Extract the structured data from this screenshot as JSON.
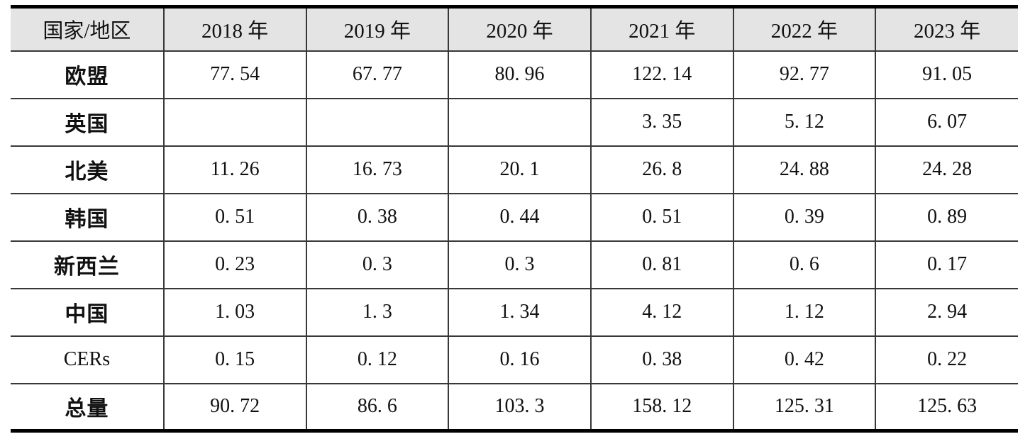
{
  "table": {
    "columns": [
      "国家/地区",
      "2018 年",
      "2019 年",
      "2020 年",
      "2021 年",
      "2022 年",
      "2023 年"
    ],
    "rows": [
      {
        "label": "欧盟",
        "latin": false,
        "values": [
          "77. 54",
          "67. 77",
          "80. 96",
          "122. 14",
          "92. 77",
          "91. 05"
        ]
      },
      {
        "label": "英国",
        "latin": false,
        "values": [
          "",
          "",
          "",
          "3. 35",
          "5. 12",
          "6. 07"
        ]
      },
      {
        "label": "北美",
        "latin": false,
        "values": [
          "11. 26",
          "16. 73",
          "20. 1",
          "26. 8",
          "24. 88",
          "24. 28"
        ]
      },
      {
        "label": "韩国",
        "latin": false,
        "values": [
          "0. 51",
          "0. 38",
          "0. 44",
          "0. 51",
          "0. 39",
          "0. 89"
        ]
      },
      {
        "label": "新西兰",
        "latin": false,
        "values": [
          "0. 23",
          "0. 3",
          "0. 3",
          "0. 81",
          "0. 6",
          "0. 17"
        ]
      },
      {
        "label": "中国",
        "latin": false,
        "values": [
          "1. 03",
          "1. 3",
          "1. 34",
          "4. 12",
          "1. 12",
          "2. 94"
        ]
      },
      {
        "label": "CERs",
        "latin": true,
        "values": [
          "0. 15",
          "0. 12",
          "0. 16",
          "0. 38",
          "0. 42",
          "0. 22"
        ]
      },
      {
        "label": "总量",
        "latin": false,
        "values": [
          "90. 72",
          "86. 6",
          "103. 3",
          "158. 12",
          "125. 31",
          "125. 63"
        ]
      }
    ],
    "colors": {
      "header_bg": "#e4e4e4",
      "rule": "#383838",
      "frame": "#000000",
      "text": "#111111"
    }
  }
}
